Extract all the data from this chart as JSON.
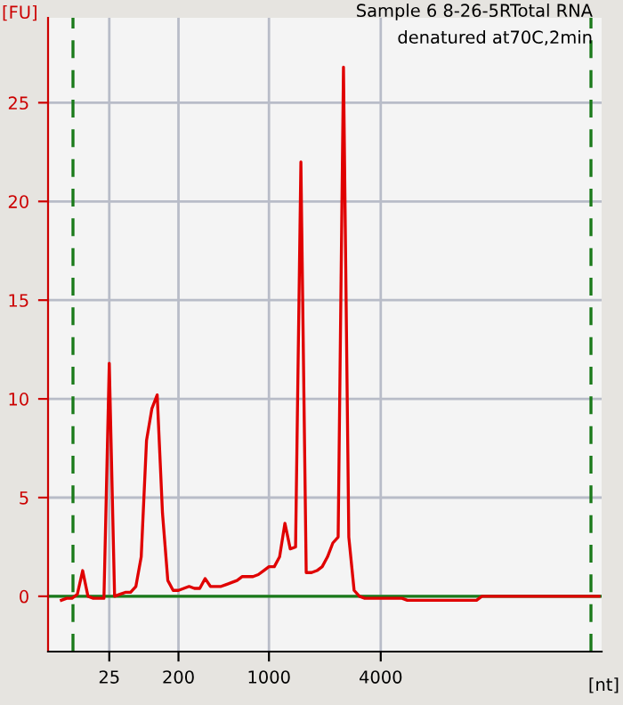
{
  "chart_data": {
    "type": "line",
    "ylabel": "[FU]",
    "xlabel": "[nt]",
    "annotations": [
      "Sample 6 8-26-5RTotal RNA",
      "denatured at70C,2min"
    ],
    "categories": [
      null,
      null,
      null,
      null,
      null,
      null,
      null,
      null,
      null,
      null,
      null,
      "25",
      null,
      null,
      null,
      null,
      null,
      null,
      null,
      null,
      null,
      null,
      null,
      null,
      "200",
      null,
      null,
      null,
      null,
      null,
      null,
      null,
      null,
      null,
      null,
      null,
      null,
      null,
      null,
      null,
      null,
      "1000",
      null,
      null,
      null,
      null,
      null,
      null,
      null,
      null,
      null,
      null,
      null,
      null,
      null,
      null,
      null,
      null,
      null,
      null,
      null,
      null,
      "4000",
      null,
      null,
      null,
      null,
      null,
      null,
      null,
      null,
      null,
      null,
      null,
      null,
      null,
      null,
      null,
      null,
      null,
      null,
      null,
      null,
      null,
      null,
      null,
      null,
      null,
      null,
      null,
      null,
      null,
      null,
      null,
      null,
      null,
      null,
      null,
      null,
      null,
      null,
      null,
      null,
      null
    ],
    "series": [
      {
        "color": "#e00000",
        "values": [
          null,
          null,
          -0.2,
          -0.1,
          -0.1,
          0.1,
          1.3,
          0,
          -0.1,
          -0.1,
          -0.1,
          11.8,
          0,
          0.1,
          0.2,
          0.2,
          0.5,
          2,
          7.9,
          9.5,
          10.2,
          4.2,
          0.8,
          0.3,
          0.3,
          0.4,
          0.5,
          0.4,
          0.4,
          0.9,
          0.5,
          0.5,
          0.5,
          0.6,
          0.7,
          0.8,
          1.0,
          1.0,
          1.0,
          1.1,
          1.3,
          1.5,
          1.5,
          2.0,
          3.7,
          2.4,
          2.5,
          22,
          1.2,
          1.2,
          1.3,
          1.5,
          2.0,
          2.7,
          3.0,
          26.8,
          3,
          0.3,
          0,
          -0.1,
          -0.1,
          -0.1,
          -0.1,
          -0.1,
          -0.1,
          -0.1,
          -0.1,
          -0.2,
          -0.2,
          -0.2,
          -0.2,
          -0.2,
          -0.2,
          -0.2,
          -0.2,
          -0.2,
          -0.2,
          -0.2,
          -0.2,
          -0.2,
          -0.2,
          0,
          0,
          0,
          0,
          0,
          0,
          0,
          0,
          0,
          0,
          0,
          0,
          0,
          0,
          0,
          0,
          0,
          0,
          0,
          0,
          0,
          0,
          0
        ]
      }
    ],
    "ylim": [
      -2.8,
      29.3
    ],
    "yticks": [
      0,
      5,
      10,
      15,
      20,
      25
    ],
    "ref_lines": [
      {
        "axis": "y",
        "value": 0,
        "color": "#1a7a1a",
        "line_style": "solid"
      }
    ],
    "grid": true
  }
}
